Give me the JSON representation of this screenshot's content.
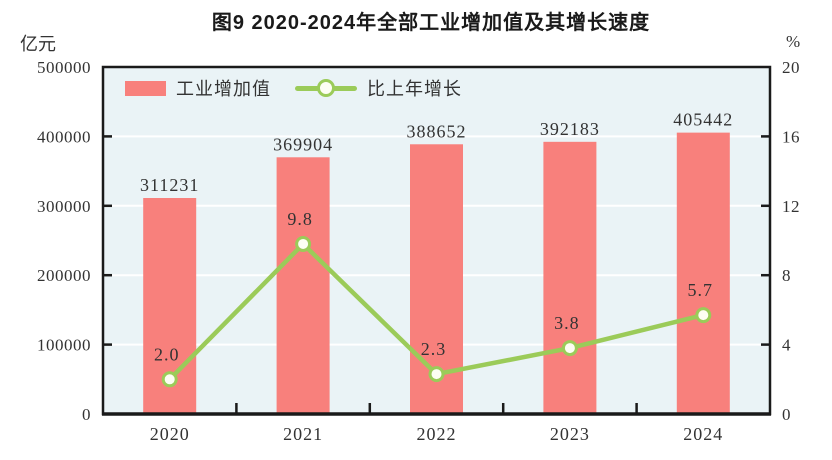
{
  "chart_data": {
    "type": "bar+line",
    "title": "图9  2020-2024年全部工业增加值及其增长速度",
    "categories": [
      "2020",
      "2021",
      "2022",
      "2023",
      "2024"
    ],
    "series": [
      {
        "name": "工业增加值",
        "type": "bar",
        "axis": "left",
        "color": "#F8807C",
        "values": [
          311231,
          369904,
          388652,
          392183,
          405442
        ],
        "labels": [
          "311231",
          "369904",
          "388652",
          "392183",
          "405442"
        ]
      },
      {
        "name": "比上年增长",
        "type": "line",
        "axis": "right",
        "color": "#9BCB59",
        "marker_fill": "#FDFEF3",
        "values": [
          2.0,
          9.8,
          2.3,
          3.8,
          5.7
        ],
        "labels": [
          "2.0",
          "9.8",
          "2.3",
          "3.8",
          "5.7"
        ]
      }
    ],
    "left_axis": {
      "unit": "亿元",
      "min": 0,
      "max": 500000,
      "tick_step": 100000,
      "tick_labels": [
        "0",
        "100000",
        "200000",
        "300000",
        "400000",
        "500000"
      ]
    },
    "right_axis": {
      "unit": "%",
      "min": 0,
      "max": 20,
      "tick_step": 4,
      "tick_labels": [
        "0",
        "4",
        "8",
        "12",
        "16",
        "20"
      ]
    },
    "grid": true,
    "gridline_color": "#FFFFFF",
    "plot_background": "#EAF3F6",
    "axis_color": "#1A1A1A",
    "text_color": "#333333",
    "legend_position": "top-left-inside"
  }
}
